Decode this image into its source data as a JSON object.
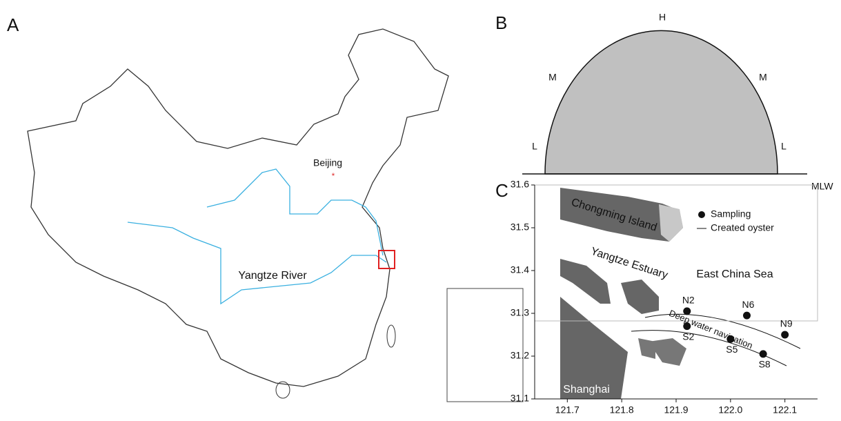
{
  "panel_a": {
    "label": "A",
    "city": "Beijing",
    "river": "Yangtze River"
  },
  "panel_b": {
    "label": "B",
    "top": "H",
    "upper_left": "M",
    "upper_right": "M",
    "lower_left": "L",
    "lower_right": "L",
    "baseline": "MLW"
  },
  "panel_c": {
    "label": "C",
    "xlim": [
      121.64,
      122.16
    ],
    "ylim": [
      31.1,
      31.6
    ],
    "xticks": [
      121.7,
      121.8,
      121.9,
      {
        "value": 122,
        "label": "122.0"
      },
      122.1
    ],
    "yticks": [
      31.1,
      31.2,
      31.3,
      31.4,
      31.5,
      31.6
    ],
    "places": [
      "Chongming Island",
      "Yangtze Estuary",
      "East China Sea",
      "Shanghai"
    ],
    "channel": "Deep water navigation",
    "legend": [
      "Sampling",
      "Created oyster"
    ],
    "sites": [
      {
        "name": "N2",
        "x": 121.92,
        "y": 31.305
      },
      {
        "name": "N6",
        "x": 122.03,
        "y": 31.295
      },
      {
        "name": "N9",
        "x": 122.1,
        "y": 31.25
      },
      {
        "name": "S2",
        "x": 121.92,
        "y": 31.27
      },
      {
        "name": "S5",
        "x": 122.0,
        "y": 31.24
      },
      {
        "name": "S8",
        "x": 122.06,
        "y": 31.205
      }
    ]
  }
}
